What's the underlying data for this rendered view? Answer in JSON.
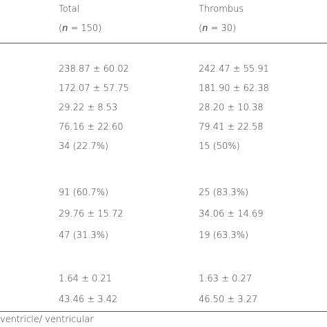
{
  "header": {
    "columns": [
      {
        "title": "Total",
        "n": {
          "open": "(",
          "symbol": "n",
          "rest": " = 150)"
        }
      },
      {
        "title": "Thrombus",
        "n": {
          "open": "(",
          "symbol": "n",
          "rest": " = 30)"
        }
      }
    ]
  },
  "table": {
    "groups": [
      {
        "rows": [
          [
            "238.87 ± 60.02",
            "242.47 ± 55.91"
          ],
          [
            "172.07 ± 57.75",
            "181.90 ± 62.38"
          ],
          [
            "29.22 ± 8.53",
            "28.20 ± 10.38"
          ],
          [
            "76.16 ± 22.60",
            "79.41 ± 22.58"
          ],
          [
            "34 (22.7%)",
            "15 (50%)"
          ]
        ]
      },
      {
        "rows": [
          [
            "91 (60.7%)",
            "25 (83.3%)"
          ],
          [
            "29.76 ± 15.72",
            "34.06 ± 14.69"
          ],
          [
            "47 (31.3%)",
            "19 (63.3%)"
          ]
        ]
      },
      {
        "rows": [
          [
            "1.64 ± 0.21",
            "1.63 ± 0.27"
          ],
          [
            "43.46 ± 3.42",
            "46.50 ± 3.27"
          ]
        ]
      }
    ]
  },
  "footnote": "ventricle/ ventricular"
}
